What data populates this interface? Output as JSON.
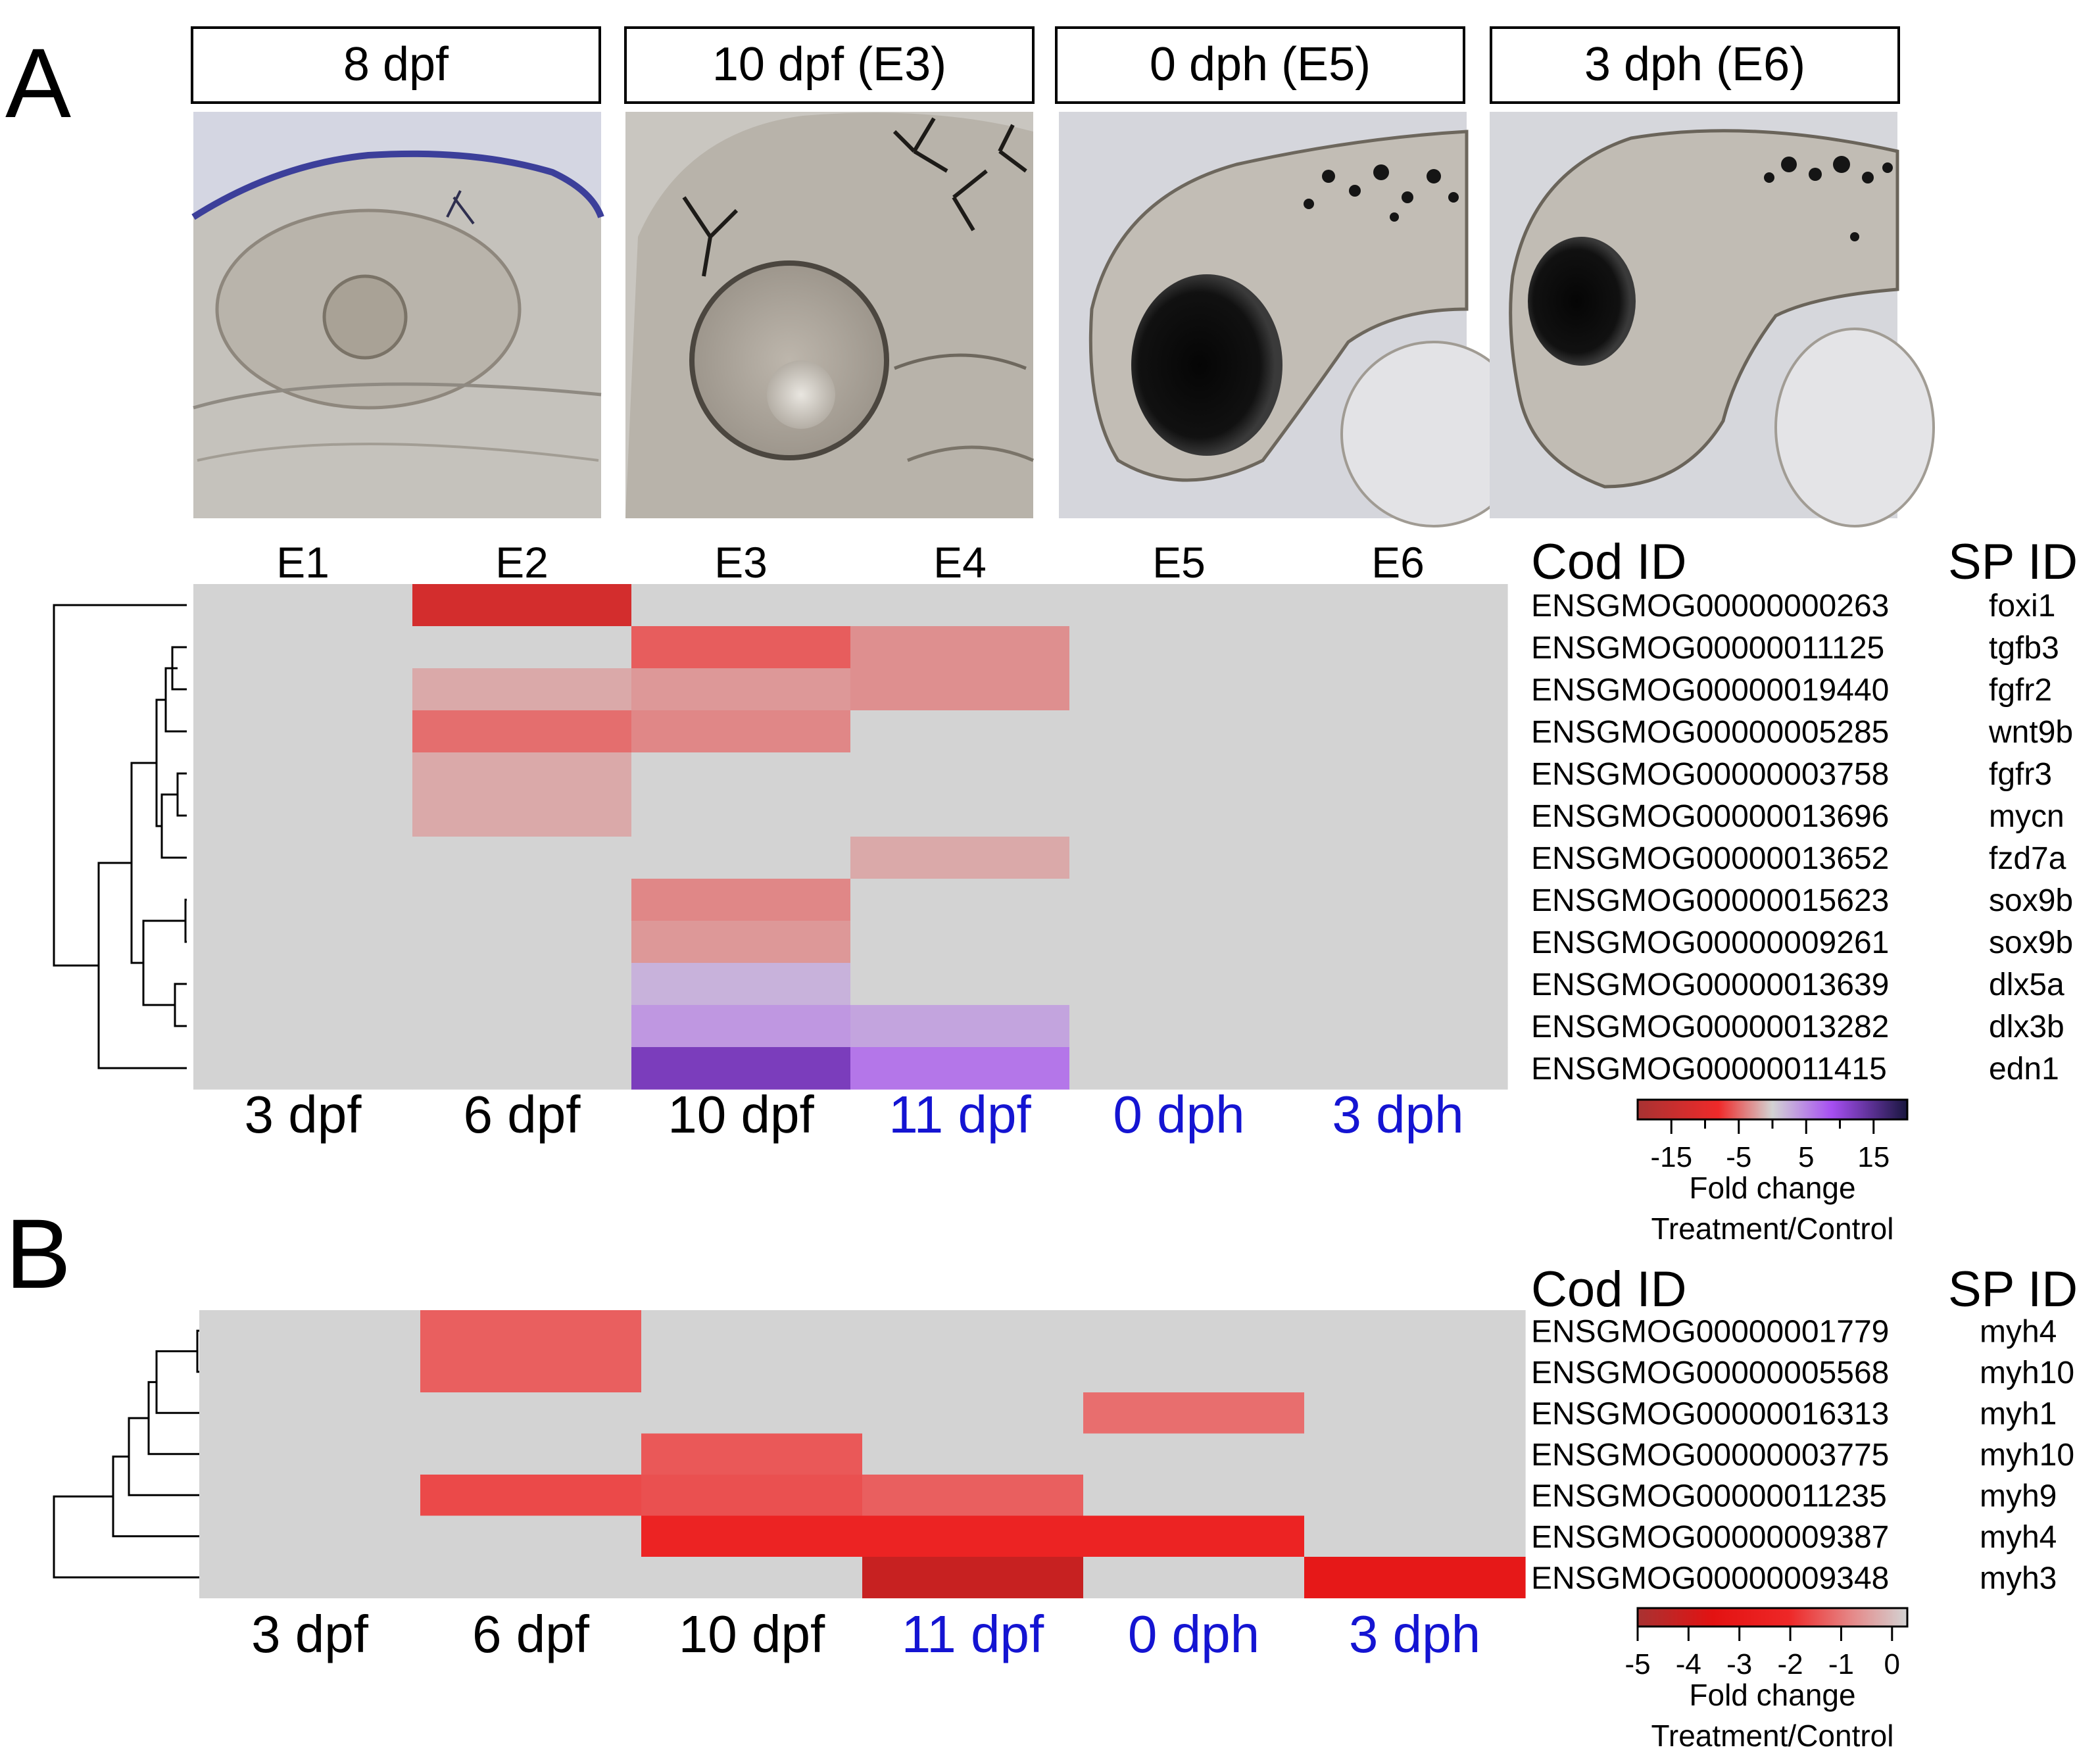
{
  "panels": [
    {
      "label": "A",
      "stage_boxes": [
        "8 dpf",
        "10 dpf (E3)",
        "0 dph (E5)",
        "3 dph (E6)"
      ],
      "photo_icons": [
        "embryo-8dpf-photo-icon",
        "embryo-10dpf-photo-icon",
        "larva-0dph-photo-icon",
        "larva-3dph-photo-icon"
      ]
    },
    {
      "label": "B"
    }
  ],
  "chart_data": [
    {
      "type": "heatmap",
      "panel": "A",
      "top_labels": [
        "E1",
        "E2",
        "E3",
        "E4",
        "E5",
        "E6"
      ],
      "categories": [
        {
          "label": "3 dpf",
          "color": "#000000"
        },
        {
          "label": "6 dpf",
          "color": "#000000"
        },
        {
          "label": "10 dpf",
          "color": "#000000"
        },
        {
          "label": "11 dpf",
          "color": "#1414d2"
        },
        {
          "label": "0 dph",
          "color": "#1414d2"
        },
        {
          "label": "3 dph",
          "color": "#1414d2"
        }
      ],
      "col_header": "Cod ID",
      "sp_header": "SP ID",
      "rows": [
        {
          "cod_id": "ENSGMOG00000000263",
          "sp_id": "foxi1"
        },
        {
          "cod_id": "ENSGMOG00000011125",
          "sp_id": "tgfb3"
        },
        {
          "cod_id": "ENSGMOG00000019440",
          "sp_id": "fgfr2"
        },
        {
          "cod_id": "ENSGMOG00000005285",
          "sp_id": "wnt9b"
        },
        {
          "cod_id": "ENSGMOG00000003758",
          "sp_id": "fgfr3"
        },
        {
          "cod_id": "ENSGMOG00000013696",
          "sp_id": "mycn"
        },
        {
          "cod_id": "ENSGMOG00000013652",
          "sp_id": "fzd7a"
        },
        {
          "cod_id": "ENSGMOG00000015623",
          "sp_id": "sox9b"
        },
        {
          "cod_id": "ENSGMOG00000009261",
          "sp_id": "sox9b"
        },
        {
          "cod_id": "ENSGMOG00000013639",
          "sp_id": "dlx5a"
        },
        {
          "cod_id": "ENSGMOG00000013282",
          "sp_id": "dlx3b"
        },
        {
          "cod_id": "ENSGMOG00000011415",
          "sp_id": "edn1"
        }
      ],
      "values": [
        [
          null,
          -14,
          null,
          null,
          null,
          null
        ],
        [
          null,
          null,
          -7,
          -4,
          null,
          null
        ],
        [
          null,
          -2.5,
          -3.5,
          -4,
          null,
          null
        ],
        [
          null,
          -6,
          -4.5,
          null,
          null,
          null
        ],
        [
          null,
          -2.5,
          null,
          null,
          null,
          null
        ],
        [
          null,
          -2.5,
          null,
          null,
          null,
          null
        ],
        [
          null,
          null,
          null,
          -2.5,
          null,
          null
        ],
        [
          null,
          null,
          -4.5,
          null,
          null,
          null
        ],
        [
          null,
          null,
          -3.5,
          null,
          null,
          null
        ],
        [
          null,
          null,
          2.5,
          null,
          null,
          null
        ],
        [
          null,
          null,
          4.5,
          3.5,
          null,
          null
        ],
        [
          null,
          null,
          13,
          7,
          null,
          null
        ]
      ],
      "dendrogram_leaf_order": [
        0,
        1,
        2,
        3,
        4,
        5,
        6,
        7,
        8,
        9,
        10,
        11
      ],
      "colorbar": {
        "range": [
          -20,
          20
        ],
        "ticks": [
          "-15",
          "-5",
          "5",
          "15"
        ],
        "tick_values": [
          -15,
          -5,
          5,
          15
        ],
        "stops": [
          "#a83232",
          "#ef2a2a",
          "#d3d3d3",
          "#a64ef2",
          "#18163e"
        ],
        "label": "Fold change",
        "sublabel": "Treatment/Control"
      },
      "missing_color": "#d3d3d3"
    },
    {
      "type": "heatmap",
      "panel": "B",
      "categories": [
        {
          "label": "3 dpf",
          "color": "#000000"
        },
        {
          "label": "6 dpf",
          "color": "#000000"
        },
        {
          "label": "10 dpf",
          "color": "#000000"
        },
        {
          "label": "11 dpf",
          "color": "#1414d2"
        },
        {
          "label": "0 dph",
          "color": "#1414d2"
        },
        {
          "label": "3 dph",
          "color": "#1414d2"
        }
      ],
      "col_header": "Cod ID",
      "sp_header": "SP ID",
      "rows": [
        {
          "cod_id": "ENSGMOG00000001779",
          "sp_id": "myh4"
        },
        {
          "cod_id": "ENSGMOG00000005568",
          "sp_id": "myh10"
        },
        {
          "cod_id": "ENSGMOG00000016313",
          "sp_id": "myh1"
        },
        {
          "cod_id": "ENSGMOG00000003775",
          "sp_id": "myh10"
        },
        {
          "cod_id": "ENSGMOG00000011235",
          "sp_id": "myh9"
        },
        {
          "cod_id": "ENSGMOG00000009387",
          "sp_id": "myh4"
        },
        {
          "cod_id": "ENSGMOG00000009348",
          "sp_id": "myh3"
        }
      ],
      "values": [
        [
          null,
          -1.6,
          null,
          null,
          null,
          null
        ],
        [
          null,
          -1.6,
          null,
          null,
          null,
          null
        ],
        [
          null,
          null,
          null,
          null,
          -1.4,
          null
        ],
        [
          null,
          null,
          -1.7,
          null,
          null,
          null
        ],
        [
          null,
          -1.9,
          -1.8,
          -1.6,
          null,
          null
        ],
        [
          null,
          null,
          -2.6,
          -2.6,
          -2.6,
          null
        ],
        [
          null,
          null,
          null,
          -4.3,
          null,
          -3.3
        ]
      ],
      "colorbar": {
        "range": [
          -5,
          0.3
        ],
        "ticks": [
          "-5",
          "-4",
          "-3",
          "-2",
          "-1",
          "0"
        ],
        "tick_values": [
          -5,
          -4,
          -3,
          -2,
          -1,
          0
        ],
        "stops": [
          "#a83232",
          "#e31212",
          "#ee2727",
          "#e58a8a",
          "#d3d3d3"
        ],
        "label": "Fold change",
        "sublabel": "Treatment/Control"
      },
      "missing_color": "#d3d3d3"
    }
  ]
}
